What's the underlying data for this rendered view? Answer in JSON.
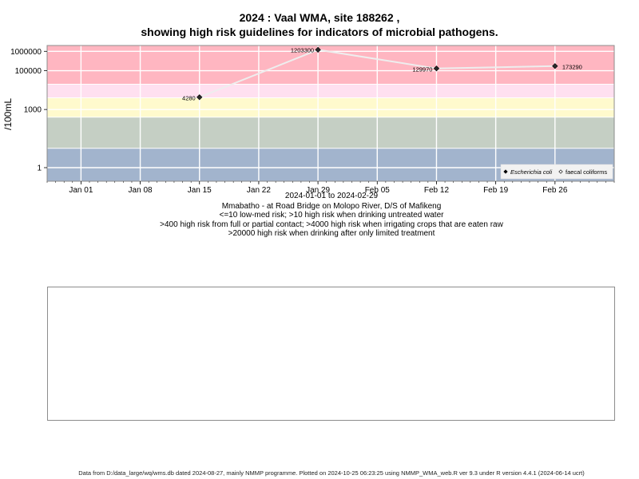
{
  "title_line1": "2024 : Vaal WMA, site 188262 ,",
  "title_line2": "showing high risk guidelines for indicators of microbial pathogens.",
  "captions": {
    "date_range": "2024-01-01 to 2024-02-29",
    "site": "Mmabatho - at Road Bridge on Molopo River, D/S of Mafikeng",
    "guideline1": "<=10 low-med risk; >10 high risk when drinking untreated water",
    "guideline2": ">400 high risk from full or partial contact; >4000 high risk when irrigating crops that are eaten raw",
    "guideline3": ">20000 high risk when drinking after only limited treatment"
  },
  "footer": "Data from D:/data_large/wq/wms.db dated 2024-08-27, mainly NMMP programme. Plotted on 2024-10-25 06:23:25 using NMMP_WMA_web.R ver 9.3 under R version 4.4.1 (2024-06-14 ucrt)",
  "colors": {
    "band_high": "#ffb6c1",
    "band_contact": "#ffe0f0",
    "band_irrigation": "#fffacd",
    "band_medium": "#c5cfc4",
    "band_low": "#a2b4cd",
    "series_line": "#eeeeee",
    "grid": "#ffffff",
    "point": "#2a2a2a"
  },
  "chart_data": {
    "type": "line",
    "ylabel": "/100mL",
    "yscale": "log10",
    "xlim": [
      "2023-12-28",
      "2024-03-04"
    ],
    "ylim_log10": [
      -0.7,
      6.3
    ],
    "x_ticks": [
      {
        "date": "2024-01-01",
        "label": "Jan 01"
      },
      {
        "date": "2024-01-08",
        "label": "Jan 08"
      },
      {
        "date": "2024-01-15",
        "label": "Jan 15"
      },
      {
        "date": "2024-01-22",
        "label": "Jan 22"
      },
      {
        "date": "2024-01-29",
        "label": "Jan 29"
      },
      {
        "date": "2024-02-05",
        "label": "Feb 05"
      },
      {
        "date": "2024-02-12",
        "label": "Feb 12"
      },
      {
        "date": "2024-02-19",
        "label": "Feb 19"
      },
      {
        "date": "2024-02-26",
        "label": "Feb 26"
      }
    ],
    "y_ticks": [
      {
        "value": 1,
        "label": "1"
      },
      {
        "value": 1000,
        "label": "1000"
      },
      {
        "value": 100000,
        "label": "100000"
      },
      {
        "value": 1000000,
        "label": "1000000"
      }
    ],
    "risk_bands": [
      {
        "from": 0.2,
        "to": 10,
        "color_key": "band_low"
      },
      {
        "from": 10,
        "to": 400,
        "color_key": "band_medium"
      },
      {
        "from": 400,
        "to": 4000,
        "color_key": "band_irrigation"
      },
      {
        "from": 4000,
        "to": 20000,
        "color_key": "band_contact"
      },
      {
        "from": 20000,
        "to": 2000000,
        "color_key": "band_high"
      }
    ],
    "grid": true,
    "series": [
      {
        "name": "Escherichia coli",
        "marker": "filled-diamond",
        "points": [
          {
            "date": "2024-01-15",
            "value": 4280,
            "label": "4280"
          },
          {
            "date": "2024-01-29",
            "value": 1203300,
            "label": "1203300"
          },
          {
            "date": "2024-02-12",
            "value": 129970,
            "label": "129970"
          },
          {
            "date": "2024-02-26",
            "value": 173290,
            "label": "173290"
          }
        ]
      }
    ],
    "legend": {
      "placement": "bottom-right",
      "entries": [
        {
          "label": "Escherichia coli",
          "marker": "filled-diamond",
          "italic": true
        },
        {
          "label": "faecal coliforms",
          "marker": "open-diamond",
          "italic": false
        }
      ]
    }
  }
}
